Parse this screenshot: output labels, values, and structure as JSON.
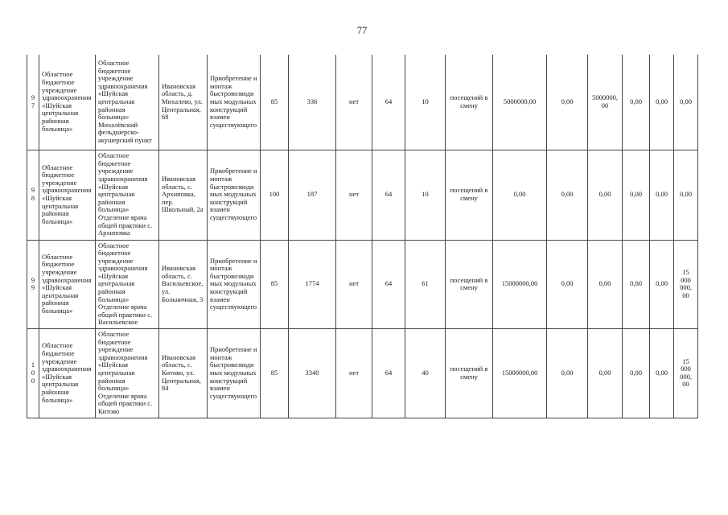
{
  "page_number": "77",
  "table": {
    "rows": [
      {
        "cells": [
          "97",
          "Областное бюджетное учреждение здравоохранения «Шуйская центральная районная больница»",
          "Областное бюджетное учреждение здравоохранения «Шуйская центральная районная больница» Михалёвский фельдшерско-акушерский пункт",
          "Ивановская область, д. Михалево, ул. Центральная, 68",
          "Приобретение и монтаж быстровозводимых модульных конструкций взамен существующего",
          "85",
          "336",
          "нет",
          "64",
          "10",
          "посещений в смену",
          "5000000,00",
          "0,00",
          "5000000,00",
          "0,00",
          "0,00",
          "0,00"
        ]
      },
      {
        "cells": [
          "98",
          "Областное бюджетное учреждение здравоохранения «Шуйская центральная районная больница»",
          "Областное бюджетное учреждение здравоохранения «Шуйская центральная районная больница» Отделение врача общей практики с. Архиповка",
          "Ивановская область, с. Архиповка, пер. Школьный, 2а",
          "Приобретение и монтаж быстровозводимых модульных конструкций взамен существующего",
          "100",
          "187",
          "нет",
          "64",
          "10",
          "посещений в смену",
          "0,00",
          "0,00",
          "0,00",
          "0,00",
          "0,00",
          "0,00"
        ]
      },
      {
        "cells": [
          "99",
          "Областное бюджетное учреждение здравоохранения «Шуйская центральная районная больница»",
          "Областное бюджетное учреждение здравоохранения «Шуйская центральная районная больница» Отделение врача общей практики с. Васильевское",
          "Ивановская область, с. Васильевское, ул. Больничная, 3",
          "Приобретение и монтаж быстровозводимых модульных конструкций взамен существующего",
          "85",
          "1774",
          "нет",
          "64",
          "61",
          "посещений в смену",
          "15000000,00",
          "0,00",
          "0,00",
          "0,00",
          "0,00",
          "15 000 000, 00"
        ]
      },
      {
        "cells": [
          "100",
          "Областное бюджетное учреждение здравоохранения «Шуйская центральная районная больница»",
          "Областное бюджетное учреждение здравоохранения «Шуйская центральная районная больница» Отделение врача общей практики с. Китово",
          "Ивановская область, с. Китово, ул. Центральная, 84",
          "Приобретение и монтаж быстровозводимых модульных конструкций взамен существующего",
          "85",
          "3340",
          "нет",
          "64",
          "40",
          "посещений в смену",
          "15000000,00",
          "0,00",
          "0,00",
          "0,00",
          "0,00",
          "15 000 000, 00"
        ]
      }
    ]
  }
}
